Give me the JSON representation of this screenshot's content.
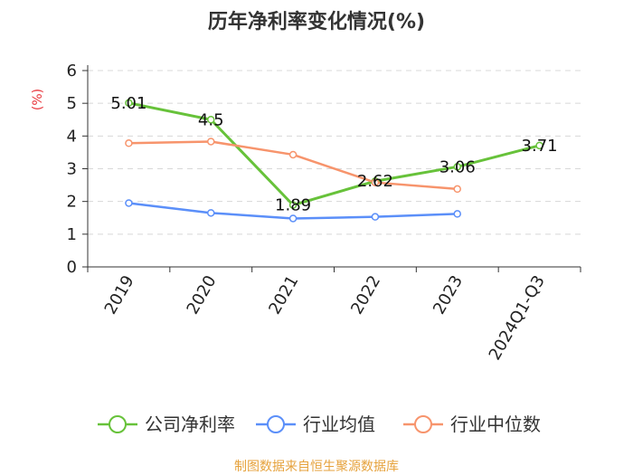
{
  "title": "历年净利率变化情况(%)",
  "source": "制图数据来自恒生聚源数据库",
  "colors": {
    "company": "#67c23a",
    "industry_avg": "#5b8ff9",
    "industry_median": "#f7946c",
    "unit": "#e8353a",
    "source": "#e6a23c",
    "grid": "#d8d8d8"
  },
  "chart_data": {
    "type": "line",
    "title": "历年净利率变化情况(%)",
    "ylabel": "(%)",
    "xlabel": "",
    "ylim": [
      0,
      6
    ],
    "yticks": [
      0,
      1,
      2,
      3,
      4,
      5,
      6
    ],
    "grid": true,
    "legend_position": "bottom",
    "categories": [
      "2019",
      "2020",
      "2021",
      "2022",
      "2023",
      "2024Q1-Q3"
    ],
    "series": [
      {
        "name": "公司净利率",
        "values": [
          5.01,
          4.5,
          1.89,
          2.62,
          3.06,
          3.71
        ],
        "labels": [
          "5.01",
          "4.5",
          "1.89",
          "2.62",
          "3.06",
          "3.71"
        ]
      },
      {
        "name": "行业均值",
        "values": [
          1.95,
          1.65,
          1.48,
          1.53,
          1.62,
          null
        ]
      },
      {
        "name": "行业中位数",
        "values": [
          3.78,
          3.83,
          3.43,
          2.58,
          2.38,
          null
        ]
      }
    ]
  }
}
